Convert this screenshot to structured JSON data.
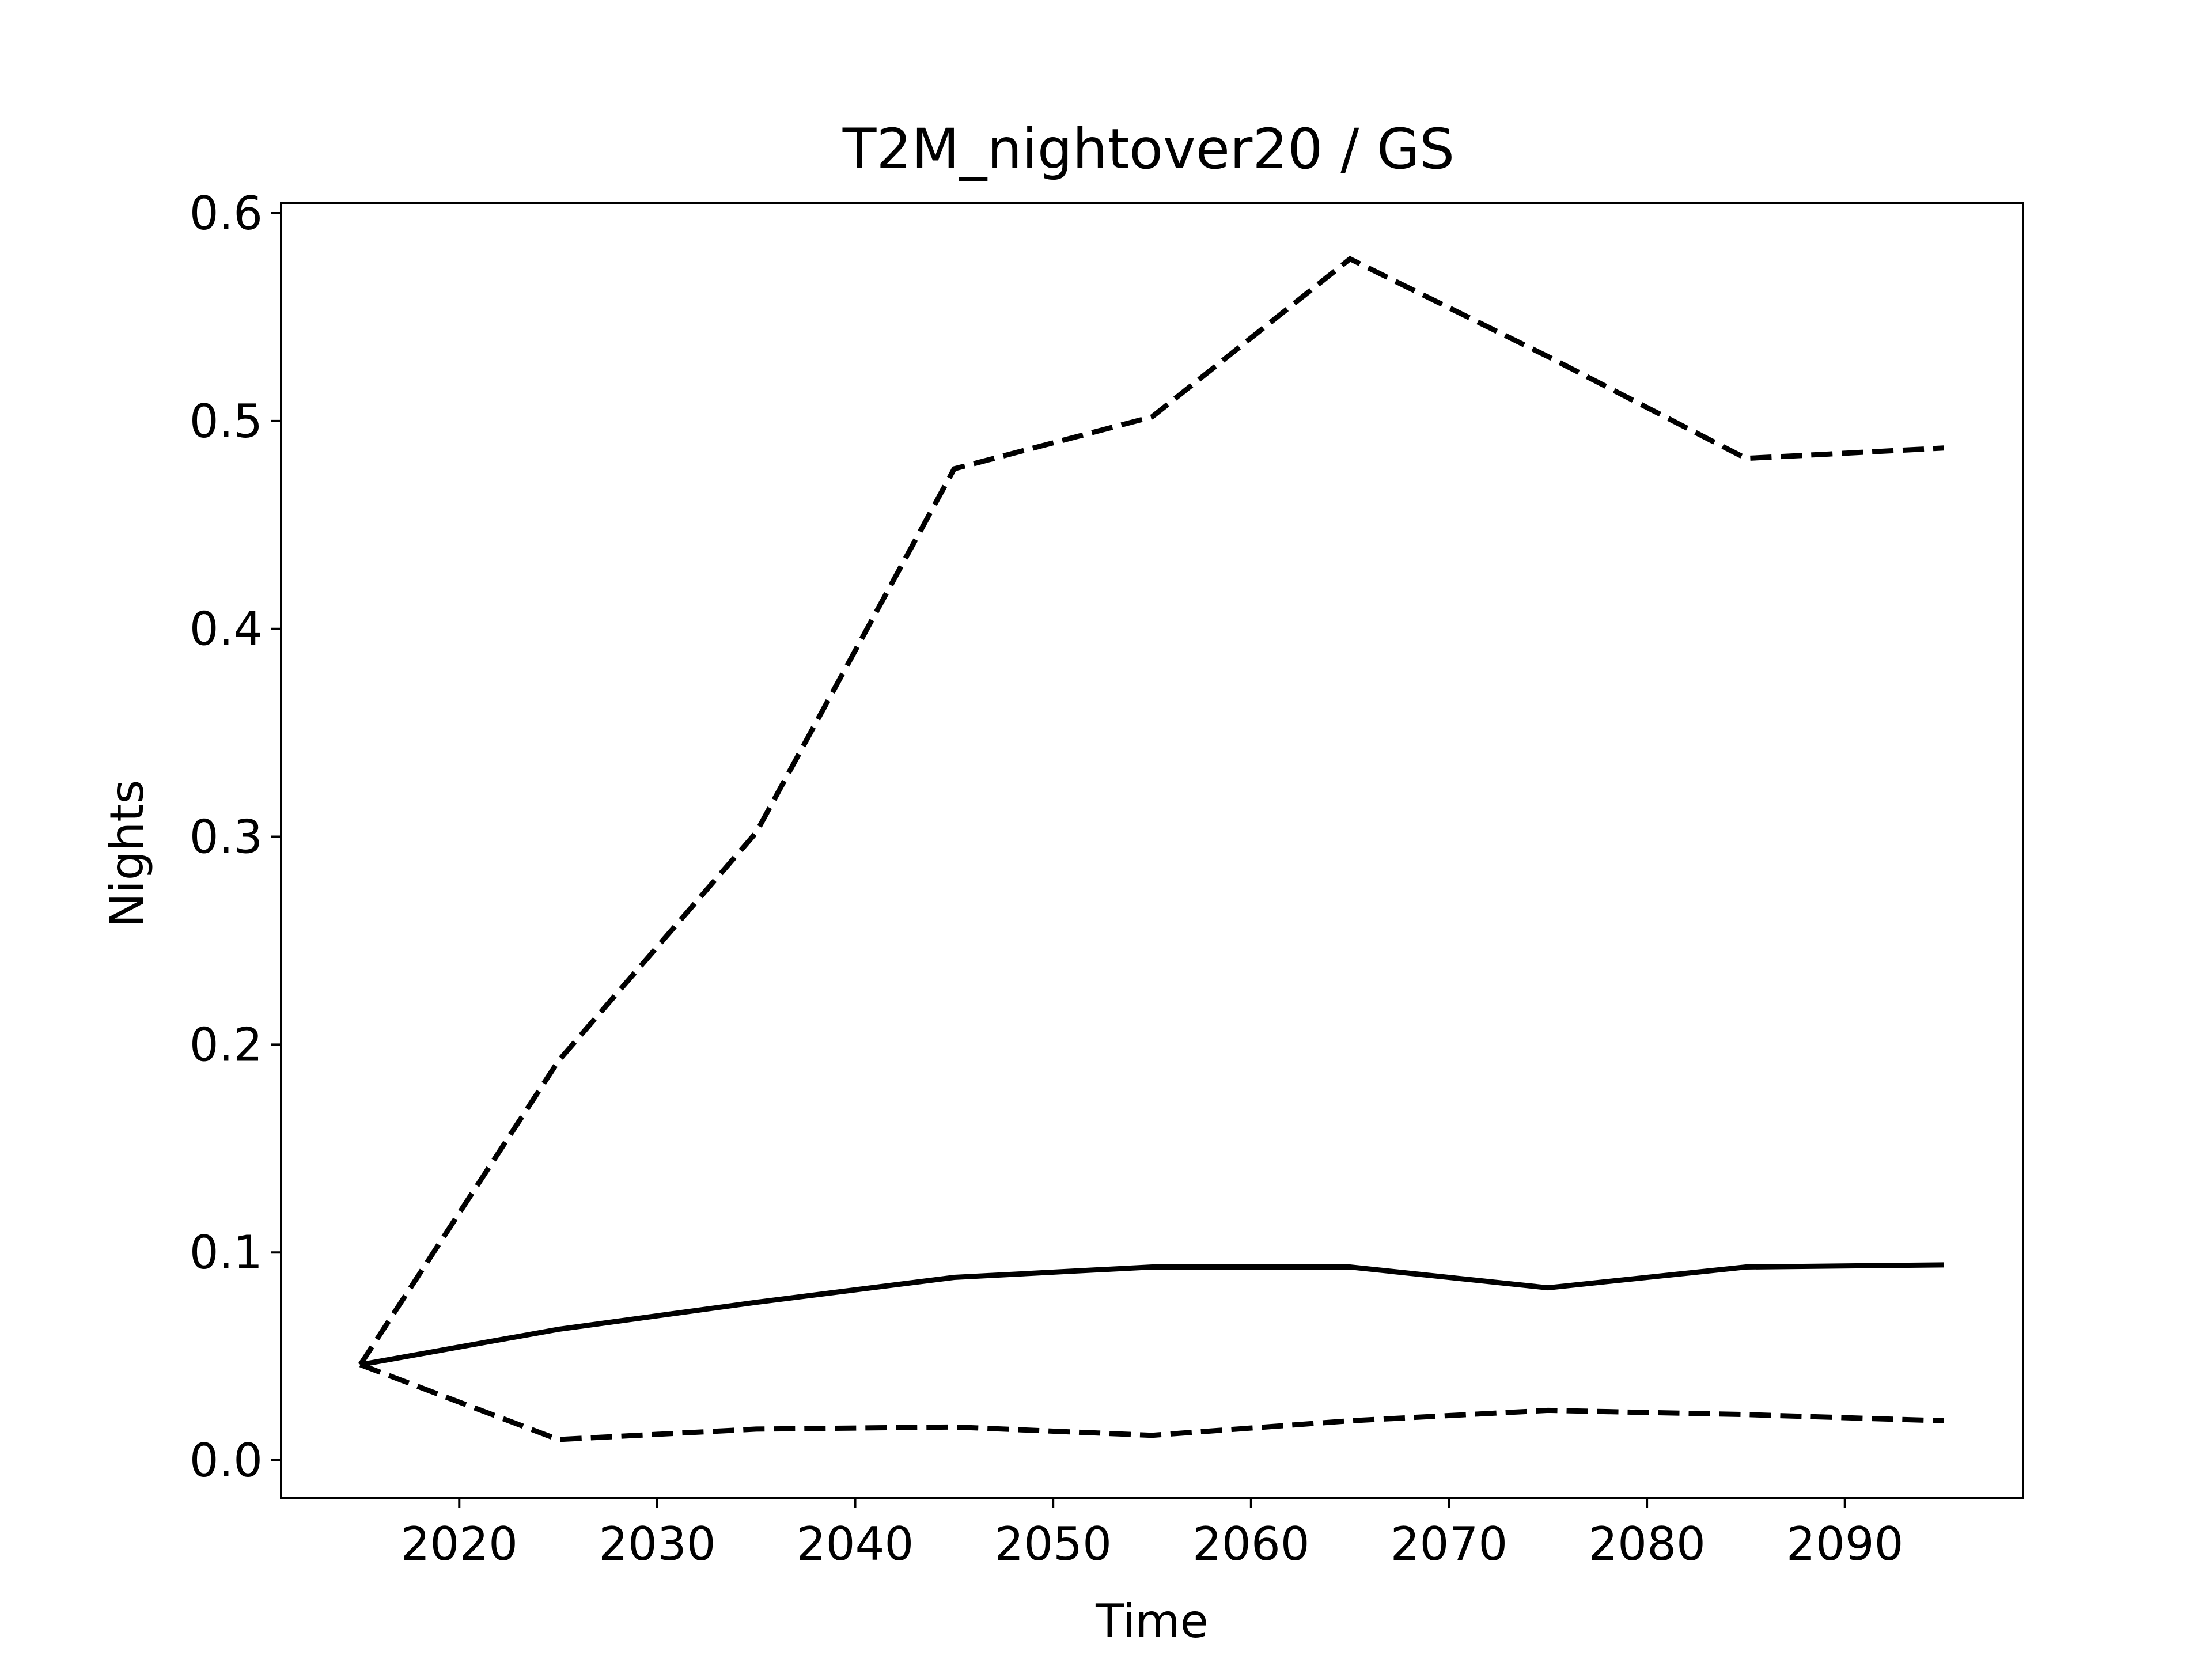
{
  "chart_data": {
    "type": "line",
    "title": "T2M_nightover20 / GS",
    "xlabel": "Time",
    "ylabel": "Nights",
    "xlim": [
      2011,
      2099
    ],
    "ylim": [
      -0.018,
      0.605
    ],
    "xticks": [
      2020,
      2030,
      2040,
      2050,
      2060,
      2070,
      2080,
      2090
    ],
    "xtick_labels": [
      "2020",
      "2030",
      "2040",
      "2050",
      "2060",
      "2070",
      "2080",
      "2090"
    ],
    "yticks": [
      0.0,
      0.1,
      0.2,
      0.3,
      0.4,
      0.5,
      0.6
    ],
    "ytick_labels": [
      "0.0",
      "0.1",
      "0.2",
      "0.3",
      "0.4",
      "0.5",
      "0.6"
    ],
    "grid": false,
    "x": [
      2015,
      2025,
      2035,
      2045,
      2055,
      2065,
      2075,
      2085,
      2095
    ],
    "series": [
      {
        "style": "solid",
        "color": "#000000",
        "values": [
          0.046,
          0.063,
          0.076,
          0.088,
          0.093,
          0.093,
          0.083,
          0.093,
          0.094
        ]
      },
      {
        "style": "dashed",
        "color": "#000000",
        "values": [
          0.046,
          0.192,
          0.302,
          0.477,
          0.502,
          0.578,
          0.531,
          0.482,
          0.487
        ]
      },
      {
        "style": "dashed",
        "color": "#000000",
        "values": [
          0.046,
          0.01,
          0.015,
          0.016,
          0.012,
          0.019,
          0.024,
          0.022,
          0.019
        ]
      }
    ]
  }
}
